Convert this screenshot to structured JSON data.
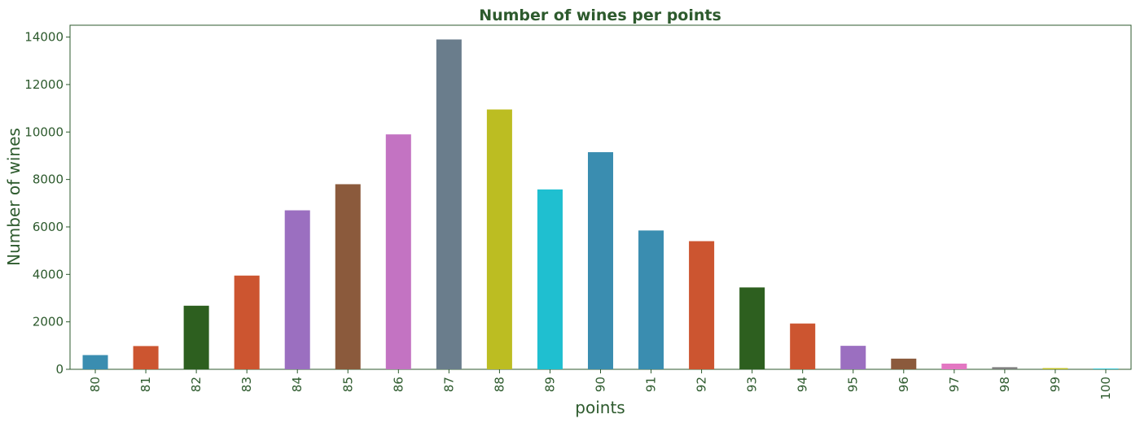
{
  "chart_data": {
    "type": "bar",
    "title": "Number of wines per points",
    "xlabel": "points",
    "ylabel": "Number of wines",
    "categories": [
      "80",
      "81",
      "82",
      "83",
      "84",
      "85",
      "86",
      "87",
      "88",
      "89",
      "90",
      "91",
      "92",
      "93",
      "94",
      "95",
      "96",
      "97",
      "98",
      "99",
      "100"
    ],
    "values": [
      600,
      980,
      2680,
      3950,
      6700,
      7800,
      9900,
      13900,
      10950,
      7580,
      9150,
      5850,
      5400,
      3450,
      1930,
      990,
      450,
      240,
      90,
      50,
      30
    ],
    "bar_colors": [
      "#3a8db0",
      "#cc5530",
      "#2d5f1f",
      "#cc5530",
      "#9b6fc0",
      "#8b5a3c",
      "#c373c2",
      "#6a7d8c",
      "#bcbd22",
      "#1fbfd0",
      "#3a8db0",
      "#3a8db0",
      "#cc5530",
      "#2d5f1f",
      "#cc5530",
      "#9b6fc0",
      "#8b5a3c",
      "#e377c2",
      "#7f7f7f",
      "#bcbd22",
      "#17becf"
    ],
    "ylim": [
      0,
      14500
    ],
    "yticks": [
      0,
      2000,
      4000,
      6000,
      8000,
      10000,
      12000,
      14000
    ],
    "grid": false,
    "text_color": "#2d5a2d"
  }
}
